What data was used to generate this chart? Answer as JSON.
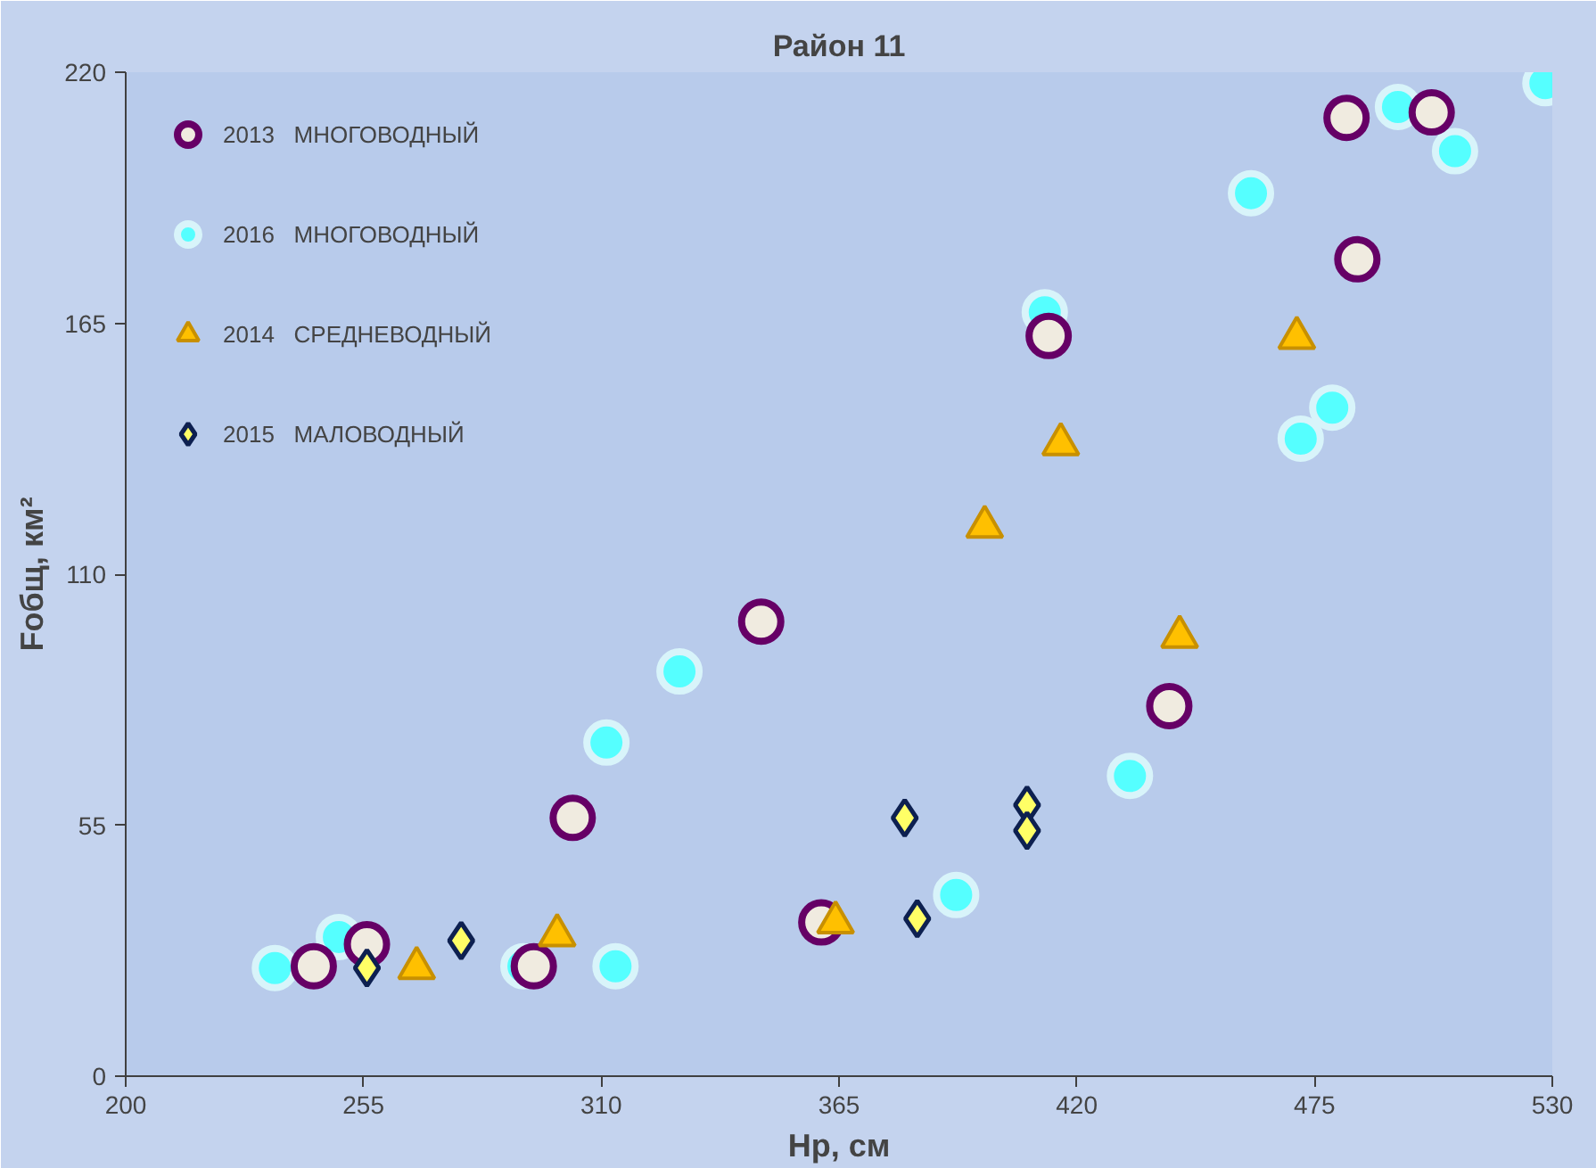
{
  "chart_data": {
    "type": "scatter",
    "title": "Район 11",
    "xlabel": "Hр, см",
    "ylabel": "Fобщ, км²",
    "xlim": [
      200,
      530
    ],
    "ylim": [
      0,
      220
    ],
    "xticks": [
      200,
      255,
      310,
      365,
      420,
      475,
      530
    ],
    "yticks": [
      0,
      55,
      110,
      165,
      220
    ],
    "grid": false,
    "legend": "top left",
    "series": [
      {
        "name": "2013   МНОГОВОДНЫЙ",
        "color": "#f0ebe0",
        "marker": "circle",
        "x": [
          243.5,
          255.8,
          294.4,
          303.4,
          347,
          360.9,
          413.5,
          441.4,
          482.4,
          484.9,
          502.1
        ],
        "values": [
          24.1,
          28.9,
          24.1,
          56.6,
          99.6,
          33.7,
          162.2,
          81.1,
          210,
          179,
          211.2
        ]
      },
      {
        "name": "2016   МНОГОВОДНЫЙ",
        "color": "#55ffff",
        "marker": "circle",
        "x": [
          234.5,
          249.3,
          292,
          311.2,
          313.3,
          328.1,
          392.1,
          412.6,
          432.3,
          460.3,
          471.8,
          479.1,
          494.3,
          507.5,
          528.4
        ],
        "values": [
          23.7,
          30.5,
          24.1,
          73.1,
          24.1,
          88.7,
          39.7,
          167.4,
          65.8,
          193.5,
          139.7,
          146.5,
          212.4,
          202.7,
          217.6
        ]
      },
      {
        "name": "2014   СРЕДНЕВОДНЫЙ",
        "color": "#ffc000",
        "marker": "triangle",
        "x": [
          267.3,
          299.8,
          364.2,
          398.7,
          416.3,
          443.8,
          470.9
        ],
        "values": [
          23.7,
          30.9,
          33.7,
          120.4,
          138.5,
          96.3,
          161.8
        ]
      },
      {
        "name": "2015   МАЛОВОДНЫЙ",
        "color": "#ffff66",
        "marker": "diamond",
        "x": [
          255.8,
          277.6,
          380.2,
          383.1,
          408.5,
          408.5
        ],
        "values": [
          23.7,
          29.7,
          56.6,
          34.5,
          59.4,
          53.8
        ]
      }
    ]
  }
}
